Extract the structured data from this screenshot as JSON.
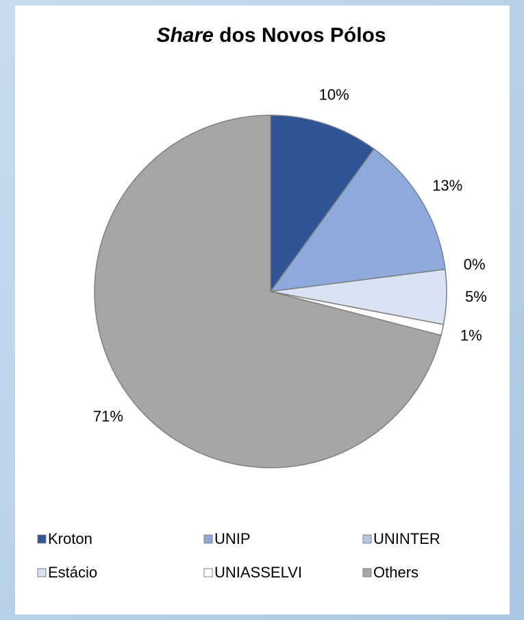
{
  "chart_data": {
    "type": "pie",
    "title": "Share dos Novos Pólos",
    "categories": [
      "Kroton",
      "UNIP",
      "UNINTER",
      "Estácio",
      "UNIASSELVI",
      "Others"
    ],
    "values": [
      10,
      13,
      0,
      5,
      1,
      71
    ],
    "value_labels": [
      "10%",
      "13%",
      "0%",
      "5%",
      "1%",
      "71%"
    ],
    "colors": [
      "#2f5597",
      "#8eaadb",
      "#b4c7e7",
      "#dae3f3",
      "#ffffff",
      "#a6a6a6"
    ],
    "legend": "bottom"
  }
}
